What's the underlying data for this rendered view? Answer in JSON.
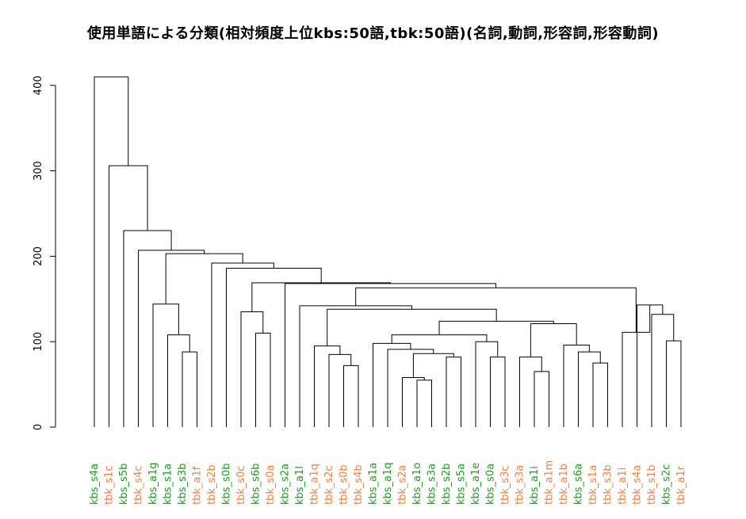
{
  "colors": {
    "kbs": "#1a9e1a",
    "tbk": "#f08040",
    "tree": "#000000"
  },
  "chart_data": {
    "type": "dendrogram",
    "title": "使用単語による分類(相対頻度上位kbs:50語,tbk:50語)(名詞,動詞,形容詞,形容動詞)",
    "xlabel": "",
    "ylabel": "",
    "ylim": [
      0,
      410
    ],
    "yticks": [
      "0",
      "100",
      "200",
      "300",
      "400"
    ],
    "leaves": [
      {
        "label": "kbs_s4a",
        "group": "kbs"
      },
      {
        "label": "tbk_s1c",
        "group": "tbk"
      },
      {
        "label": "kbs_s5b",
        "group": "kbs"
      },
      {
        "label": "tbk_s4c",
        "group": "tbk"
      },
      {
        "label": "kbs_a1g",
        "group": "kbs"
      },
      {
        "label": "kbs_s1a",
        "group": "kbs"
      },
      {
        "label": "kbs_s3b",
        "group": "kbs"
      },
      {
        "label": "tbk_a1f",
        "group": "tbk"
      },
      {
        "label": "tbk_s2b",
        "group": "tbk"
      },
      {
        "label": "kbs_s0b",
        "group": "kbs"
      },
      {
        "label": "tbk_s0c",
        "group": "tbk"
      },
      {
        "label": "kbs_s6b",
        "group": "kbs"
      },
      {
        "label": "tbk_s0a",
        "group": "tbk"
      },
      {
        "label": "kbs_s2a",
        "group": "kbs"
      },
      {
        "label": "kbs_a1l",
        "group": "kbs"
      },
      {
        "label": "tbk_a1q",
        "group": "tbk"
      },
      {
        "label": "tbk_s2c",
        "group": "tbk"
      },
      {
        "label": "tbk_s0b",
        "group": "tbk"
      },
      {
        "label": "tbk_s4b",
        "group": "tbk"
      },
      {
        "label": "kbs_a1a",
        "group": "kbs"
      },
      {
        "label": "kbs_a1q",
        "group": "kbs"
      },
      {
        "label": "tbk_s2a",
        "group": "tbk"
      },
      {
        "label": "kbs_a1o",
        "group": "kbs"
      },
      {
        "label": "kbs_s3a",
        "group": "kbs"
      },
      {
        "label": "kbs_s2b",
        "group": "kbs"
      },
      {
        "label": "kbs_s5a",
        "group": "kbs"
      },
      {
        "label": "kbs_a1e",
        "group": "kbs"
      },
      {
        "label": "kbs_s0a",
        "group": "kbs"
      },
      {
        "label": "tbk_s3c",
        "group": "tbk"
      },
      {
        "label": "tbk_s3a",
        "group": "tbk"
      },
      {
        "label": "kbs_a1i",
        "group": "kbs"
      },
      {
        "label": "tbk_a1m",
        "group": "tbk"
      },
      {
        "label": "tbk_a1b",
        "group": "tbk"
      },
      {
        "label": "kbs_s6a",
        "group": "kbs"
      },
      {
        "label": "tbk_s1a",
        "group": "tbk"
      },
      {
        "label": "tbk_s3b",
        "group": "tbk"
      },
      {
        "label": "tbk_a1i",
        "group": "tbk"
      },
      {
        "label": "tbk_s4a",
        "group": "tbk"
      },
      {
        "label": "tbk_s1b",
        "group": "tbk"
      },
      {
        "label": "kbs_s2c",
        "group": "kbs"
      },
      {
        "label": "tbk_a1r",
        "group": "tbk"
      }
    ],
    "merges": [
      {
        "left": 6,
        "right": 7,
        "height": 88
      },
      {
        "left": 5,
        "right": "m0",
        "height": 108
      },
      {
        "left": 4,
        "right": "m1",
        "height": 144
      },
      {
        "left": 11,
        "right": 12,
        "height": 110
      },
      {
        "left": 10,
        "right": "m3",
        "height": 135
      },
      {
        "left": 17,
        "right": 18,
        "height": 72
      },
      {
        "left": 16,
        "right": "m5",
        "height": 85
      },
      {
        "left": 15,
        "right": "m6",
        "height": 95
      },
      {
        "left": 22,
        "right": 23,
        "height": 55
      },
      {
        "left": 21,
        "right": "m8",
        "height": 58
      },
      {
        "left": 24,
        "right": 25,
        "height": 82
      },
      {
        "left": "m9",
        "right": "m10",
        "height": 86
      },
      {
        "left": 20,
        "right": "m11",
        "height": 91
      },
      {
        "left": 19,
        "right": "m12",
        "height": 98
      },
      {
        "left": 27,
        "right": 28,
        "height": 82
      },
      {
        "left": 26,
        "right": "m14",
        "height": 100
      },
      {
        "left": "m13",
        "right": "m15",
        "height": 108
      },
      {
        "left": 30,
        "right": 31,
        "height": 65
      },
      {
        "left": 29,
        "right": "m17",
        "height": 82
      },
      {
        "left": 34,
        "right": 35,
        "height": 75
      },
      {
        "left": 33,
        "right": "m19",
        "height": 88
      },
      {
        "left": 32,
        "right": "m20",
        "height": 96
      },
      {
        "left": "m18",
        "right": "m21",
        "height": 121
      },
      {
        "left": "m16",
        "right": "m22",
        "height": 124
      },
      {
        "left": "m7",
        "right": "m23",
        "height": 138
      },
      {
        "left": 14,
        "right": "m24",
        "height": 142
      },
      {
        "left": 39,
        "right": 40,
        "height": 101
      },
      {
        "left": 38,
        "right": "m26",
        "height": 132
      },
      {
        "left": 37,
        "right": "m27",
        "height": 143
      },
      {
        "left": 36,
        "right": "m28",
        "height": 111
      },
      {
        "left": "m25",
        "right": "m29",
        "height": 163
      },
      {
        "left": 13,
        "right": "m30",
        "height": 168
      },
      {
        "left": "m4",
        "right": "m31",
        "height": 169
      },
      {
        "left": 9,
        "right": "m32",
        "height": 186
      },
      {
        "left": 8,
        "right": "m33",
        "height": 192
      },
      {
        "left": "m2",
        "right": "m34",
        "height": 203
      },
      {
        "left": 3,
        "right": "m35",
        "height": 207
      },
      {
        "left": 2,
        "right": "m36",
        "height": 230
      },
      {
        "left": 1,
        "right": "m37",
        "height": 306
      },
      {
        "left": 0,
        "right": "m38",
        "height": 410
      }
    ]
  }
}
